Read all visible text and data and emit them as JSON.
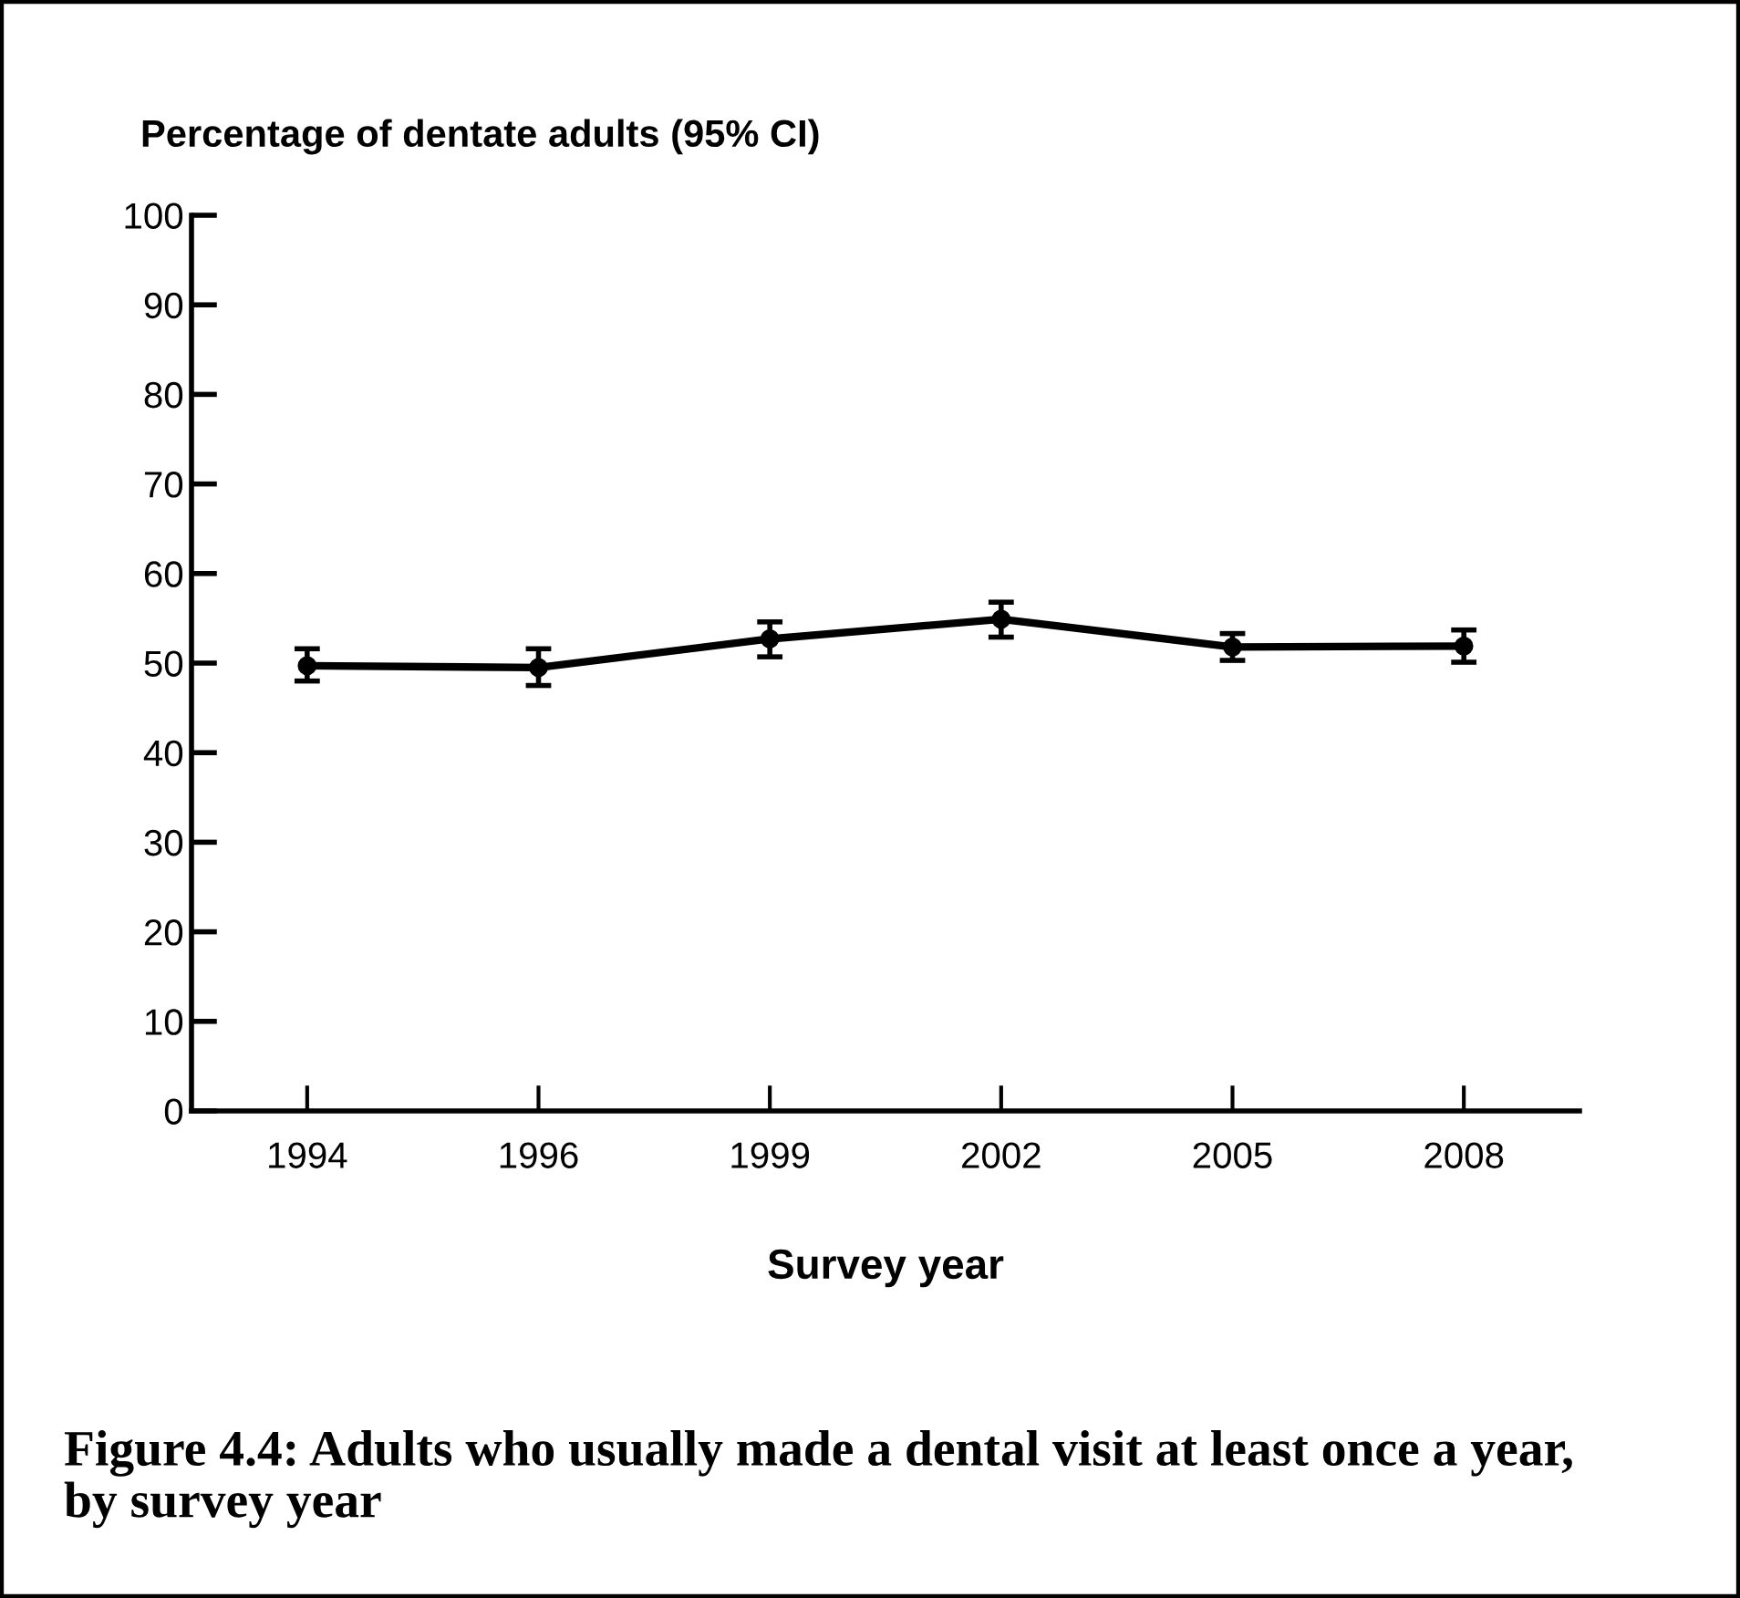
{
  "chart_data": {
    "type": "line",
    "title": "Figure 4.4: Adults who usually made a dental visit at least once a year, by survey year",
    "ylabel": "Percentage of dentate adults (95% CI)",
    "xlabel": "Survey year",
    "categories": [
      "1994",
      "1996",
      "1999",
      "2002",
      "2005",
      "2008"
    ],
    "series": [
      {
        "color": "#000000",
        "values": [
          49.7,
          49.5,
          52.7,
          54.9,
          51.8,
          51.9
        ],
        "errors": [
          [
            48.0,
            51.6
          ],
          [
            47.5,
            51.6
          ],
          [
            50.7,
            54.6
          ],
          [
            52.9,
            56.8
          ],
          [
            50.3,
            53.3
          ],
          [
            50.1,
            53.7
          ]
        ]
      }
    ],
    "ylim": [
      0,
      100
    ],
    "yticks": [
      0,
      10,
      20,
      30,
      40,
      50,
      60,
      70,
      80,
      90,
      100
    ],
    "marker": "circle",
    "line_style": "solid"
  }
}
